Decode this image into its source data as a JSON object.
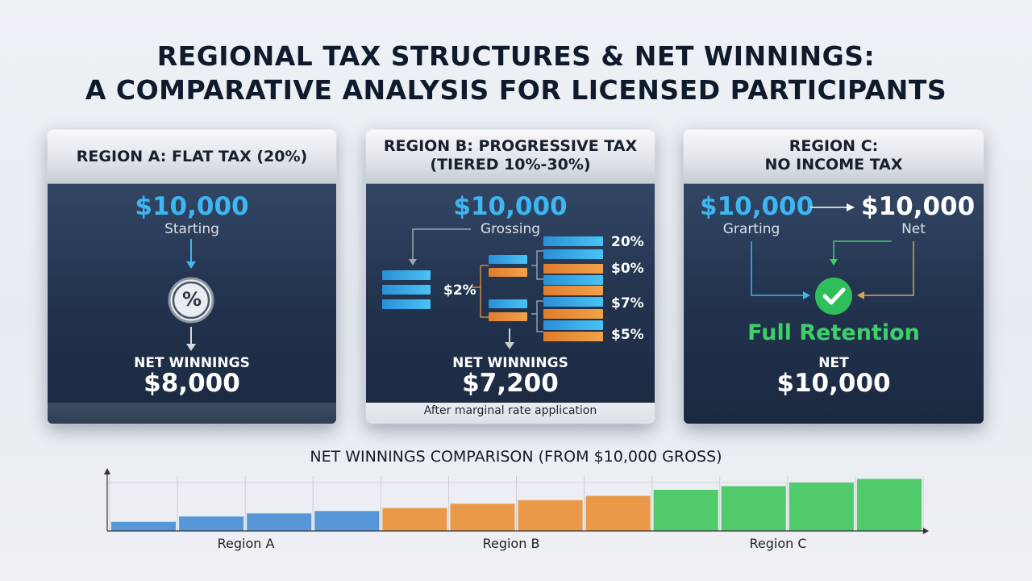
{
  "title": {
    "line1": "REGIONAL TAX STRUCTURES & NET WINNINGS:",
    "line2": "A COMPARATIVE ANALYSIS FOR LICENSED PARTICIPANTS"
  },
  "panels": {
    "a": {
      "header1": "REGION A: FLAT TAX (20%)",
      "gross": "$10,000",
      "gross_label": "Starting",
      "percent_symbol": "%",
      "net_label": "NET WINNINGS",
      "net_value": "$8,000"
    },
    "b": {
      "header1": "REGION B: PROGRESSIVE TAX",
      "header2": "(TIERED 10%-30%)",
      "gross": "$10,000",
      "gross_label": "Grossing",
      "mid_rate": "$2%",
      "rates": [
        "20%",
        "$0%",
        "$7%",
        "$5%"
      ],
      "net_label": "NET WINNINGS",
      "net_value": "$7,200",
      "footnote": "After marginal rate application"
    },
    "c": {
      "header1": "REGION C:",
      "header2": "NO INCOME TAX",
      "gross": "$10,000",
      "gross_label": "Grarting",
      "net_top": "$10,000",
      "net_top_label": "Net",
      "retention": "Full Retention",
      "net_label": "NET",
      "net_value": "$10,000"
    }
  },
  "chart_data": {
    "type": "bar",
    "title": "NET WINNINGS COMPARISON (FROM $10,000 GROSS)",
    "group_labels": [
      "Region A",
      "Region B",
      "Region C"
    ],
    "groups": [
      {
        "name": "Region A",
        "color": "#4a8fd6",
        "values": [
          1.5,
          2.4,
          2.9,
          3.3
        ]
      },
      {
        "name": "Region B",
        "color": "#e8913a",
        "values": [
          3.8,
          4.5,
          5.1,
          5.8
        ]
      },
      {
        "name": "Region C",
        "color": "#43c761",
        "values": [
          6.8,
          7.4,
          8.0,
          8.6
        ]
      }
    ],
    "ylim": [
      0,
      10
    ],
    "grid": true
  },
  "colors": {
    "accent_blue": "#3db6f2",
    "accent_orange": "#ef963f",
    "accent_green": "#3fcf6a",
    "panel_dark": "#23344f"
  }
}
